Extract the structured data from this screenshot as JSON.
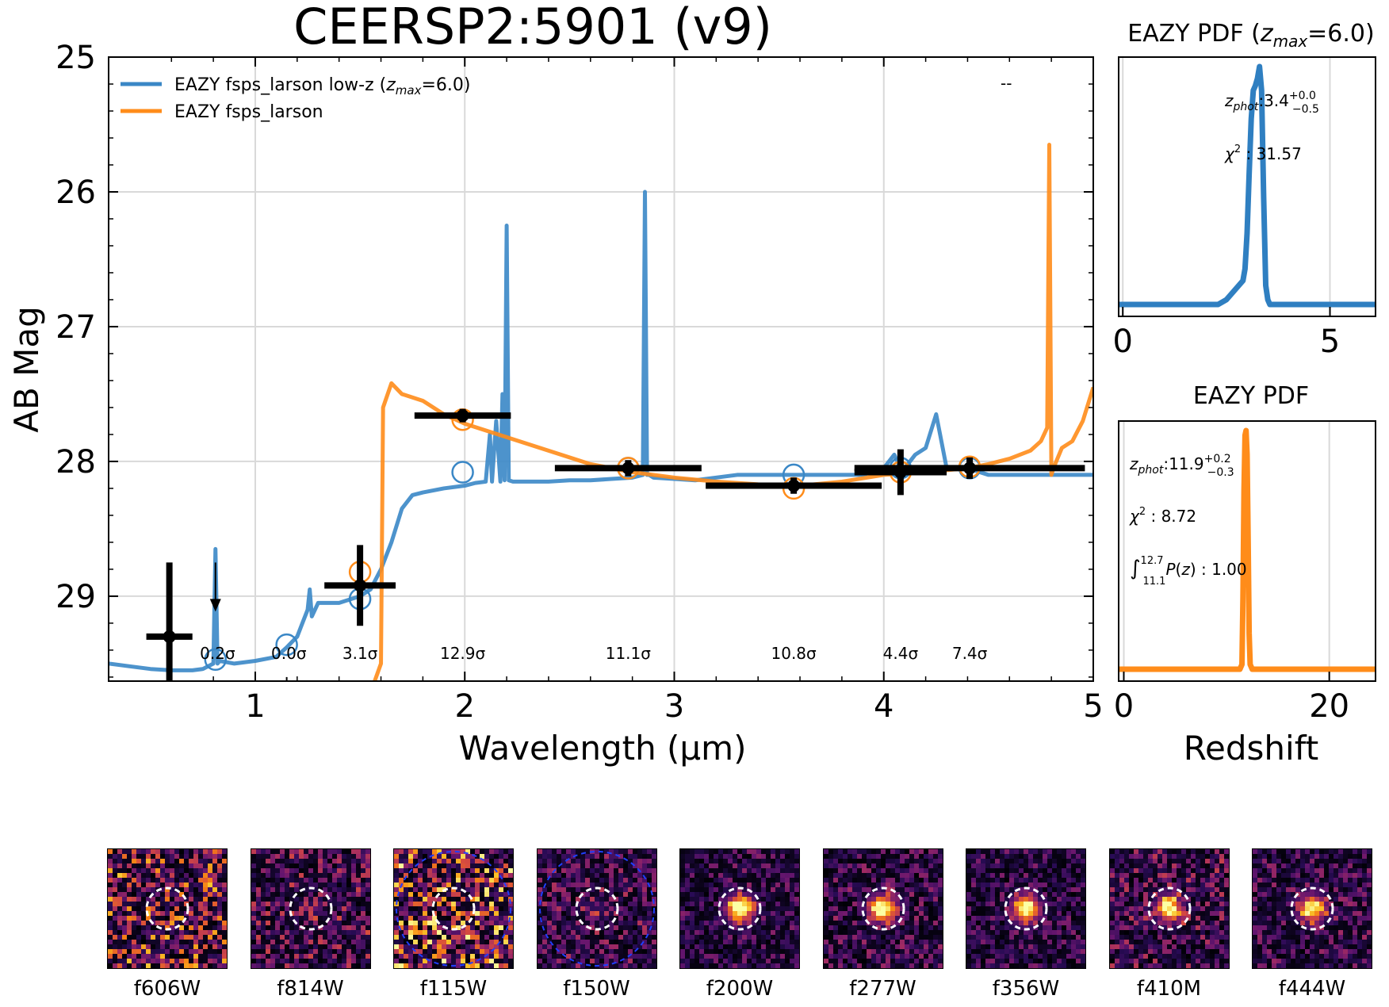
{
  "title": "CEERSP2:5901 (v9)",
  "colors": {
    "eazy_lowz": "#3a87c6",
    "eazy_full": "#ff8c1a",
    "photometry": "#000000",
    "grid": "#d9d9d9"
  },
  "chart_data": [
    {
      "name": "sed",
      "type": "line",
      "xlabel": "Wavelength (μm)",
      "ylabel": "AB Mag",
      "xlim": [
        0.3,
        5.0
      ],
      "ylim": [
        29.63,
        25.0
      ],
      "y_inverted": true,
      "grid": true,
      "legend_position": "top-left",
      "xticks": [
        1,
        2,
        3,
        4,
        5
      ],
      "yticks": [
        25,
        26,
        27,
        28,
        29
      ],
      "corner_text": "--",
      "series": [
        {
          "name": "EAZY fsps_larson low-z (z_max=6.0)",
          "legend": "EAZY fsps_larson low-z (",
          "legend_z": "z",
          "legend_sub": "max",
          "legend_tail": "=6.0)",
          "color": "#3a87c6",
          "x": [
            0.3,
            0.4,
            0.5,
            0.6,
            0.7,
            0.75,
            0.8,
            0.81,
            0.82,
            0.83,
            0.9,
            1.0,
            1.1,
            1.15,
            1.2,
            1.25,
            1.26,
            1.27,
            1.3,
            1.4,
            1.5,
            1.55,
            1.6,
            1.65,
            1.7,
            1.75,
            1.8,
            1.9,
            2.0,
            2.05,
            2.1,
            2.12,
            2.13,
            2.15,
            2.17,
            2.18,
            2.19,
            2.2,
            2.21,
            2.23,
            2.3,
            2.4,
            2.5,
            2.6,
            2.7,
            2.8,
            2.85,
            2.86,
            2.87,
            2.88,
            2.9,
            3.0,
            3.1,
            3.2,
            3.3,
            3.4,
            3.5,
            3.6,
            3.7,
            3.8,
            3.9,
            4.0,
            4.05,
            4.08,
            4.1,
            4.15,
            4.2,
            4.25,
            4.3,
            4.4,
            4.5,
            4.6,
            4.7,
            4.8,
            4.9,
            5.0
          ],
          "y": [
            29.5,
            29.52,
            29.54,
            29.55,
            29.55,
            29.54,
            29.5,
            28.65,
            29.5,
            29.48,
            29.5,
            29.48,
            29.45,
            29.38,
            29.3,
            29.1,
            28.95,
            29.15,
            29.05,
            29.05,
            29.0,
            28.95,
            28.8,
            28.6,
            28.35,
            28.25,
            28.23,
            28.2,
            28.18,
            28.16,
            28.15,
            27.8,
            28.15,
            27.7,
            28.15,
            27.5,
            28.14,
            26.25,
            28.14,
            28.15,
            28.15,
            28.15,
            28.14,
            28.14,
            28.13,
            28.12,
            28.1,
            26.0,
            28.1,
            28.1,
            28.12,
            28.13,
            28.14,
            28.12,
            28.1,
            28.1,
            28.1,
            28.1,
            28.1,
            28.1,
            28.1,
            28.05,
            27.95,
            28.05,
            28.05,
            27.95,
            27.9,
            27.65,
            28.05,
            28.05,
            28.1,
            28.1,
            28.1,
            28.1,
            28.1,
            28.1
          ]
        },
        {
          "name": "EAZY fsps_larson",
          "legend": "EAZY fsps_larson",
          "color": "#ff8c1a",
          "x": [
            1.57,
            1.6,
            1.61,
            1.65,
            1.7,
            1.8,
            1.9,
            2.0,
            2.2,
            2.4,
            2.6,
            2.8,
            3.0,
            3.2,
            3.4,
            3.6,
            3.8,
            4.0,
            4.2,
            4.4,
            4.5,
            4.6,
            4.7,
            4.75,
            4.78,
            4.79,
            4.8,
            4.81,
            4.85,
            4.9,
            4.95,
            5.0
          ],
          "y": [
            29.63,
            29.5,
            27.6,
            27.42,
            27.5,
            27.55,
            27.65,
            27.72,
            27.82,
            27.92,
            28.02,
            28.08,
            28.12,
            28.15,
            28.17,
            28.18,
            28.15,
            28.1,
            28.08,
            28.05,
            28.02,
            27.98,
            27.92,
            27.85,
            27.75,
            25.65,
            28.1,
            28.05,
            27.9,
            27.85,
            27.7,
            27.45
          ]
        }
      ],
      "photometry": [
        {
          "filter": "f606W",
          "x": 0.59,
          "xerr": 0.11,
          "y": 29.3,
          "yerr": 0.55
        },
        {
          "filter": "f814W",
          "x": 0.81,
          "y": 28.75,
          "upper_limit": true
        },
        {
          "filter": "f115W",
          "x": 1.15,
          "y": 29.6,
          "upper_limit": true
        },
        {
          "filter": "f150W",
          "x": 1.5,
          "xerr": 0.17,
          "y": 28.92,
          "yerr": 0.3
        },
        {
          "filter": "f200W",
          "x": 1.99,
          "xerr": 0.23,
          "y": 27.66,
          "yerr": 0.05
        },
        {
          "filter": "f277W",
          "x": 2.78,
          "xerr": 0.35,
          "y": 28.05,
          "yerr": 0.06
        },
        {
          "filter": "f356W",
          "x": 3.57,
          "xerr": 0.42,
          "y": 28.18,
          "yerr": 0.06
        },
        {
          "filter": "f410M",
          "x": 4.08,
          "xerr": 0.22,
          "y": 28.08,
          "yerr": 0.17
        },
        {
          "filter": "f444W",
          "x": 4.41,
          "xerr": 0.55,
          "y": 28.05,
          "yerr": 0.08
        }
      ],
      "model_mags_lowz": [
        {
          "x": 0.81,
          "y": 29.47
        },
        {
          "x": 1.15,
          "y": 29.36
        },
        {
          "x": 1.5,
          "y": 29.02
        },
        {
          "x": 1.99,
          "y": 28.08
        },
        {
          "x": 2.78,
          "y": 28.05
        },
        {
          "x": 3.57,
          "y": 28.1
        },
        {
          "x": 4.08,
          "y": 28.05
        },
        {
          "x": 4.41,
          "y": 28.05
        }
      ],
      "model_mags_full": [
        {
          "x": 1.5,
          "y": 28.82
        },
        {
          "x": 1.99,
          "y": 27.69
        },
        {
          "x": 2.78,
          "y": 28.05
        },
        {
          "x": 3.57,
          "y": 28.2
        },
        {
          "x": 4.08,
          "y": 28.08
        },
        {
          "x": 4.41,
          "y": 28.04
        }
      ],
      "snr_labels": [
        {
          "x": 0.82,
          "text": "0.2σ"
        },
        {
          "x": 1.16,
          "text": "0.0σ"
        },
        {
          "x": 1.5,
          "text": "3.1σ"
        },
        {
          "x": 1.99,
          "text": "12.9σ"
        },
        {
          "x": 2.78,
          "text": "11.1σ"
        },
        {
          "x": 3.57,
          "text": "10.8σ"
        },
        {
          "x": 4.08,
          "text": "4.4σ"
        },
        {
          "x": 4.41,
          "text": "7.4σ"
        }
      ]
    },
    {
      "name": "pdf_lowz",
      "type": "line",
      "title_prefix": "EAZY PDF (",
      "title_z": "z",
      "title_sub": "max",
      "title_tail": "=6.0)",
      "xlim": [
        -0.1,
        6.1
      ],
      "xticks": [
        0,
        5
      ],
      "grid": true,
      "color": "#2f7fc1",
      "x": [
        -0.1,
        2.3,
        2.5,
        2.6,
        2.7,
        2.8,
        2.9,
        2.95,
        3.0,
        3.05,
        3.1,
        3.15,
        3.2,
        3.25,
        3.3,
        3.35,
        3.4,
        3.45,
        3.5,
        3.55,
        3.6,
        6.1
      ],
      "pdf": [
        0,
        0,
        0.02,
        0.04,
        0.06,
        0.08,
        0.1,
        0.15,
        0.3,
        0.55,
        0.78,
        0.9,
        0.92,
        0.95,
        1.0,
        0.9,
        0.45,
        0.08,
        0.02,
        0.0,
        0,
        0
      ],
      "zphot": "3.4",
      "zphot_up": "+0.0",
      "zphot_lo": "−0.5",
      "chi2": "31.57"
    },
    {
      "name": "pdf_full",
      "type": "line",
      "title": "EAZY PDF",
      "xlabel": "Redshift",
      "xlim": [
        -0.5,
        24.5
      ],
      "xticks": [
        0,
        20
      ],
      "grid": true,
      "color": "#ff8c1a",
      "x": [
        -0.5,
        11.3,
        11.5,
        11.6,
        11.7,
        11.8,
        11.9,
        12.0,
        12.1,
        12.2,
        12.3,
        12.5,
        24.5
      ],
      "pdf": [
        0,
        0,
        0.02,
        0.3,
        0.75,
        0.98,
        1.0,
        0.9,
        0.55,
        0.15,
        0.02,
        0,
        0
      ],
      "zphot": "11.9",
      "zphot_up": "+0.2",
      "zphot_lo": "−0.3",
      "chi2": "8.72",
      "int_upper": "12.7",
      "int_lower": "11.1",
      "int_value": "1.00"
    }
  ],
  "stamps": [
    {
      "label": "f606W",
      "seed": 11,
      "noise": 0.85,
      "blob": 0.0,
      "blue_circle": false
    },
    {
      "label": "f814W",
      "seed": 23,
      "noise": 0.55,
      "blob": 0.1,
      "blue_circle": false
    },
    {
      "label": "f115W",
      "seed": 37,
      "noise": 1.0,
      "blob": 0.0,
      "blue_circle": true
    },
    {
      "label": "f150W",
      "seed": 41,
      "noise": 0.45,
      "blob": 0.15,
      "blue_circle": true
    },
    {
      "label": "f200W",
      "seed": 53,
      "noise": 0.35,
      "blob": 1.0,
      "blue_circle": false
    },
    {
      "label": "f277W",
      "seed": 67,
      "noise": 0.4,
      "blob": 1.0,
      "blue_circle": false
    },
    {
      "label": "f356W",
      "seed": 71,
      "noise": 0.35,
      "blob": 1.0,
      "blue_circle": false
    },
    {
      "label": "f410M",
      "seed": 83,
      "noise": 0.5,
      "blob": 0.85,
      "blue_circle": false
    },
    {
      "label": "f444W",
      "seed": 97,
      "noise": 0.4,
      "blob": 0.9,
      "blue_circle": false
    }
  ]
}
